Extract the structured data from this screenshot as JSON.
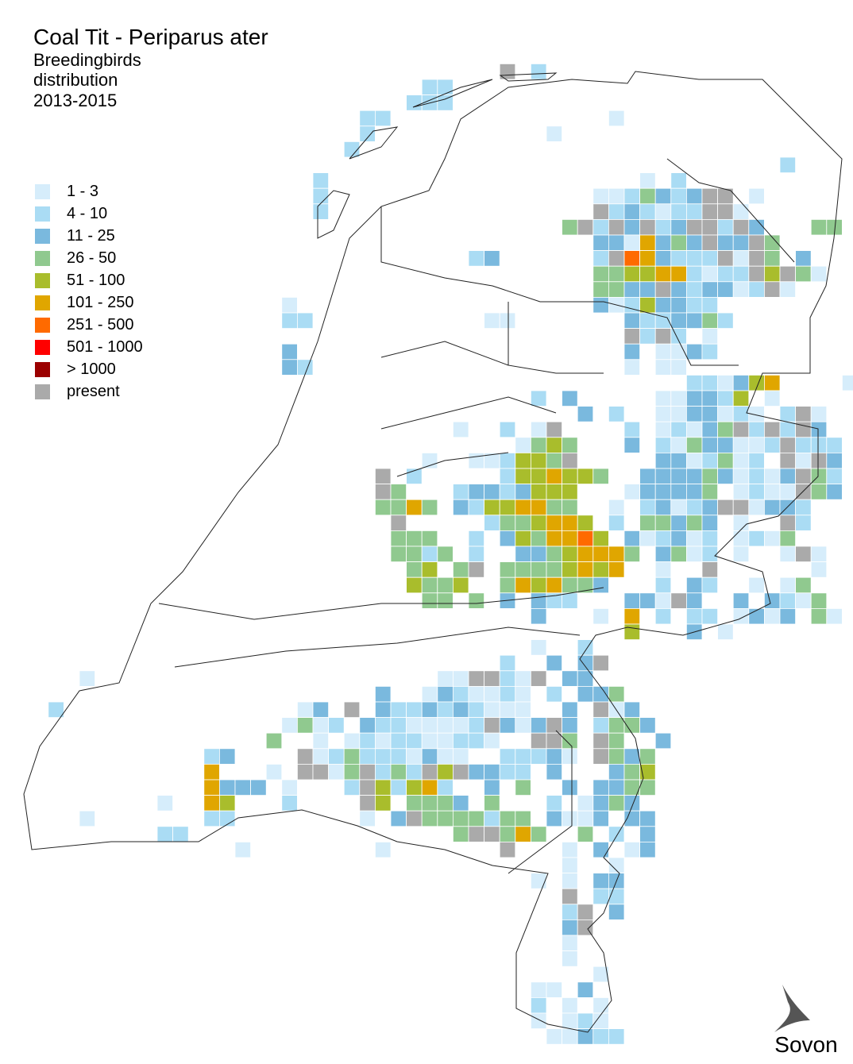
{
  "title": "Coal Tit - Periparus ater",
  "subtitle": [
    "Breedingbirds",
    "distribution",
    "2013-2015"
  ],
  "legend": [
    {
      "label": "1 - 3",
      "color": "#d6edfb"
    },
    {
      "label": "4 - 10",
      "color": "#aadcf4"
    },
    {
      "label": "11 - 25",
      "color": "#7ab9de"
    },
    {
      "label": "26 - 50",
      "color": "#90c98f"
    },
    {
      "label": "51 - 100",
      "color": "#a9bd2c"
    },
    {
      "label": "101 - 250",
      "color": "#e0a600"
    },
    {
      "label": "251 - 500",
      "color": "#ff6a00"
    },
    {
      "label": "501 - 1000",
      "color": "#ff0000"
    },
    {
      "label": "> 1000",
      "color": "#9b0000"
    },
    {
      "label": "present",
      "color": "#aaaaaa"
    }
  ],
  "logo": "Sovon"
}
